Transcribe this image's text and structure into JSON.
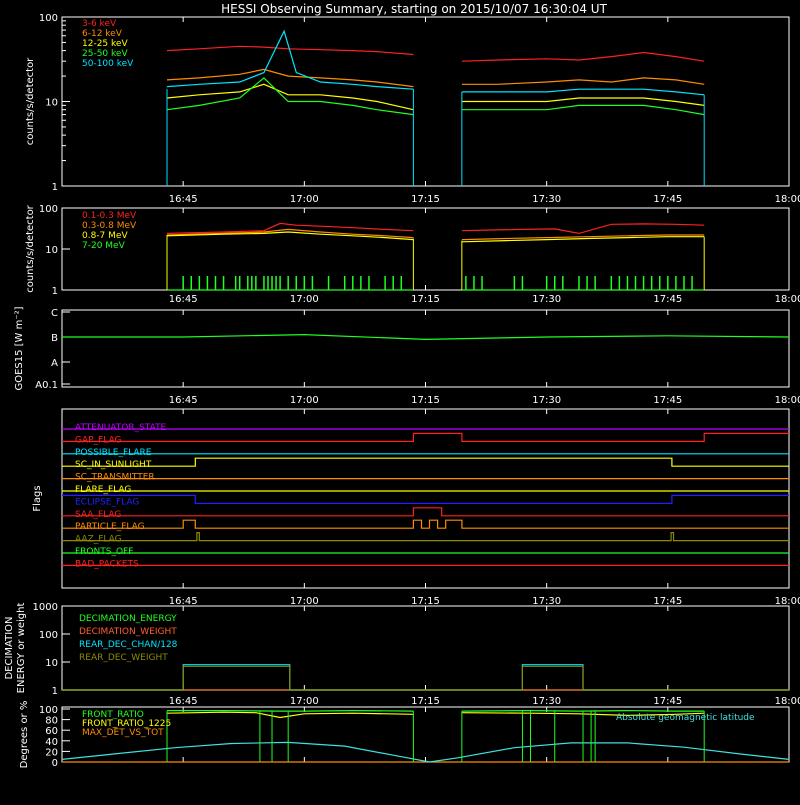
{
  "title": "HESSI Observing Summary, starting on 2015/10/07 16:30:04 UT",
  "time_ticks": [
    "16:45",
    "17:00",
    "17:15",
    "17:30",
    "17:45",
    "18:00"
  ],
  "chart_data": [
    {
      "id": "count_rates",
      "type": "line",
      "ylabel": "counts/s/detector",
      "yscale": "log",
      "ylim": [
        1,
        100
      ],
      "ytick_labels": [
        "1",
        "10",
        "100"
      ],
      "x_unit": "minutes after 16:30",
      "xlim": [
        0,
        90
      ],
      "series": [
        {
          "name": "3-6 keV",
          "color": "#ff2020",
          "segments": [
            {
              "x": [
                13,
                17,
                22,
                25,
                28,
                32,
                36,
                39,
                43.5
              ],
              "y": [
                40,
                42,
                45,
                44,
                42,
                41,
                40,
                39,
                36
              ]
            },
            {
              "x": [
                49.5,
                54,
                60,
                64,
                68,
                72,
                76,
                79.5
              ],
              "y": [
                30,
                31,
                32,
                31,
                34,
                38,
                34,
                30
              ]
            }
          ]
        },
        {
          "name": "6-12 keV",
          "color": "#ff8c00",
          "segments": [
            {
              "x": [
                13,
                17,
                22,
                25,
                28,
                32,
                36,
                39,
                43.5
              ],
              "y": [
                18,
                19,
                21,
                24,
                20,
                19,
                18,
                17,
                15
              ]
            },
            {
              "x": [
                49.5,
                54,
                60,
                64,
                68,
                72,
                76,
                79.5
              ],
              "y": [
                16,
                16,
                17,
                18,
                17,
                19,
                18,
                16
              ]
            }
          ]
        },
        {
          "name": "12-25 keV",
          "color": "#ffff00",
          "segments": [
            {
              "x": [
                13,
                17,
                22,
                25,
                28,
                32,
                36,
                39,
                43.5
              ],
              "y": [
                11,
                12,
                13,
                16,
                12,
                12,
                11,
                10,
                8
              ]
            },
            {
              "x": [
                49.5,
                54,
                60,
                64,
                68,
                72,
                76,
                79.5
              ],
              "y": [
                10,
                10,
                10,
                11,
                11,
                11,
                10,
                9
              ]
            }
          ]
        },
        {
          "name": "25-50 keV",
          "color": "#20ff20",
          "segments": [
            {
              "x": [
                13,
                17,
                22,
                25,
                28,
                32,
                36,
                39,
                43.5
              ],
              "y": [
                8,
                9,
                11,
                19,
                10,
                10,
                9,
                8,
                7
              ]
            },
            {
              "x": [
                49.5,
                54,
                60,
                64,
                68,
                72,
                76,
                79.5
              ],
              "y": [
                8,
                8,
                8,
                9,
                9,
                9,
                8,
                7
              ]
            }
          ]
        },
        {
          "name": "50-100 keV",
          "color": "#00e5ff",
          "segments": [
            {
              "x": [
                13,
                17,
                22,
                25,
                27.5,
                29,
                32,
                36,
                39,
                43.5
              ],
              "y": [
                15,
                16,
                17,
                22,
                68,
                22,
                17,
                16,
                15,
                14
              ]
            },
            {
              "x": [
                49.5,
                54,
                60,
                64,
                68,
                72,
                76,
                79.5
              ],
              "y": [
                13,
                13,
                13,
                14,
                14,
                14,
                13,
                12
              ]
            }
          ]
        }
      ]
    },
    {
      "id": "high_energy_rates",
      "type": "line",
      "ylabel": "counts/s/detector",
      "yscale": "log",
      "ylim": [
        1,
        100
      ],
      "ytick_labels": [
        "1",
        "10",
        "100"
      ],
      "x_unit": "minutes after 16:30",
      "xlim": [
        0,
        90
      ],
      "series": [
        {
          "name": "0.1-0.3 MeV",
          "color": "#ff2020",
          "segments": [
            {
              "x": [
                13,
                20,
                25,
                27,
                29,
                32,
                36,
                40,
                43.5
              ],
              "y": [
                24,
                26,
                28,
                42,
                38,
                36,
                33,
                30,
                28
              ]
            },
            {
              "x": [
                49.5,
                53,
                57,
                61,
                64,
                68,
                72,
                76,
                79.5
              ],
              "y": [
                28,
                29,
                30,
                31,
                24,
                40,
                41,
                40,
                38
              ]
            }
          ]
        },
        {
          "name": "0.3-0.8 MeV",
          "color": "#ff8c00",
          "segments": [
            {
              "x": [
                13,
                20,
                25,
                28,
                32,
                36,
                40,
                43.5
              ],
              "y": [
                22,
                24,
                26,
                30,
                26,
                23,
                21,
                19
              ]
            },
            {
              "x": [
                49.5,
                55,
                60,
                65,
                70,
                75,
                79.5
              ],
              "y": [
                17,
                18,
                19,
                20,
                21,
                22,
                22
              ]
            }
          ]
        },
        {
          "name": "0.8-7 MeV",
          "color": "#ffff00",
          "segments": [
            {
              "x": [
                13,
                20,
                25,
                28,
                32,
                36,
                40,
                43.5
              ],
              "y": [
                21,
                23,
                24,
                26,
                23,
                21,
                19,
                17
              ]
            },
            {
              "x": [
                49.5,
                55,
                60,
                65,
                70,
                75,
                79.5
              ],
              "y": [
                15,
                16,
                17,
                18,
                19,
                20,
                20
              ]
            }
          ]
        },
        {
          "name": "7-20 MeV",
          "color": "#20ff20",
          "segments": [
            {
              "x": [
                13,
                43.5
              ],
              "y": [
                1,
                1
              ]
            },
            {
              "x": [
                49.5,
                79.5
              ],
              "y": [
                1,
                1
              ]
            }
          ]
        }
      ]
    },
    {
      "id": "goes",
      "type": "line",
      "ylabel": "GOES15 [W m⁻²]",
      "ytick_labels": [
        "A0.1",
        "A",
        "B",
        "C"
      ],
      "series": [
        {
          "name": "GOES15",
          "color": "#20ff20",
          "x": [
            0,
            15,
            30,
            45,
            60,
            75,
            90
          ],
          "y": [
            -6.9,
            -6.9,
            -6.88,
            -6.92,
            -6.9,
            -6.89,
            -6.9
          ]
        }
      ]
    },
    {
      "id": "flags",
      "type": "line",
      "ylabel": "Flags",
      "series": [
        {
          "name": "ATTENUATOR_STATE",
          "color": "#c000ff",
          "x": [
            0,
            90
          ],
          "y": [
            0,
            0
          ]
        },
        {
          "name": "GAP_FLAG",
          "color": "#ff2020",
          "x": [
            0,
            43.5,
            43.5,
            49.5,
            49.5,
            79.5,
            79.5,
            90
          ],
          "y": [
            0,
            0,
            1,
            1,
            0,
            0,
            1,
            1
          ]
        },
        {
          "name": "POSSIBLE_FLARE",
          "color": "#00e5ff",
          "x": [
            0,
            90
          ],
          "y": [
            0,
            0
          ]
        },
        {
          "name": "SC_IN_SUNLIGHT",
          "color": "#ffff00",
          "x": [
            0,
            16.5,
            16.5,
            75.5,
            75.5,
            90
          ],
          "y": [
            0,
            0,
            1,
            1,
            0,
            0
          ]
        },
        {
          "name": "SC_TRANSMITTER",
          "color": "#ff8c00",
          "x": [
            0,
            90
          ],
          "y": [
            0,
            0
          ]
        },
        {
          "name": "FLARE_FLAG",
          "color": "#ffff00",
          "x": [
            0,
            90
          ],
          "y": [
            0,
            0
          ]
        },
        {
          "name": "ECLIPSE_FLAG",
          "color": "#2020ff",
          "x": [
            0,
            16.5,
            16.5,
            75.5,
            75.5,
            90
          ],
          "y": [
            1,
            1,
            0,
            0,
            1,
            1
          ]
        },
        {
          "name": "SAA_FLAG",
          "color": "#ff2020",
          "x": [
            0,
            43.5,
            43.5,
            47,
            47,
            90
          ],
          "y": [
            0,
            0,
            1,
            1,
            0,
            0
          ]
        },
        {
          "name": "PARTICLE_FLAG",
          "color": "#ff8c00",
          "x": [
            0,
            15,
            15,
            16.5,
            16.5,
            43.5,
            43.5,
            44.5,
            44.5,
            45.5,
            45.5,
            46.5,
            46.5,
            47.5,
            47.5,
            49.5,
            49.5,
            90
          ],
          "y": [
            0,
            0,
            1,
            1,
            0,
            0,
            1,
            1,
            0,
            0,
            1,
            1,
            0,
            0,
            1,
            1,
            0,
            0
          ]
        },
        {
          "name": "AAZ_FLAG",
          "color": "#8b8b00",
          "x": [
            0,
            16.7,
            16.7,
            17,
            17,
            75.4,
            75.4,
            75.7,
            75.7,
            90
          ],
          "y": [
            0,
            0,
            1,
            1,
            0,
            0,
            1,
            1,
            0,
            0
          ]
        },
        {
          "name": "FRONTS_OFF",
          "color": "#20ff20",
          "x": [
            0,
            90
          ],
          "y": [
            0,
            0
          ]
        },
        {
          "name": "BAD_PACKETS",
          "color": "#ff2020",
          "x": [
            0,
            90
          ],
          "y": [
            0,
            0
          ]
        }
      ]
    },
    {
      "id": "decimation",
      "type": "line",
      "ylabel": "DECIMATION ENERGY or weight",
      "yscale": "log",
      "ylim": [
        1,
        1000
      ],
      "ytick_labels": [
        "1",
        "10",
        "100",
        "1000"
      ],
      "series": [
        {
          "name": "DECIMATION_ENERGY",
          "color": "#20ff20",
          "x": [
            0,
            90
          ],
          "y": [
            1,
            1
          ]
        },
        {
          "name": "DECIMATION_WEIGHT",
          "color": "#ff6030",
          "x": [
            0,
            90
          ],
          "y": [
            1,
            1
          ]
        },
        {
          "name": "REAR_DEC_CHAN/128",
          "color": "#00e5ff",
          "x": [
            0,
            15,
            15,
            28.2,
            28.2,
            57,
            57,
            64.5,
            64.5,
            90
          ],
          "y": [
            1,
            1,
            8,
            8,
            1,
            1,
            8,
            8,
            1,
            1
          ]
        },
        {
          "name": "REAR_DEC_WEIGHT",
          "color": "#8b8b00",
          "x": [
            0,
            15,
            15,
            28.2,
            28.2,
            57,
            57,
            64.5,
            64.5,
            90
          ],
          "y": [
            1,
            1,
            7,
            7,
            1,
            1,
            7,
            7,
            1,
            1
          ]
        }
      ]
    },
    {
      "id": "ratios",
      "type": "line",
      "ylabel": "Degrees or %",
      "ylim": [
        0,
        100
      ],
      "ytick_labels": [
        "0",
        "20",
        "40",
        "60",
        "80",
        "100"
      ],
      "annotation": "Absolute geomagnetic latitude",
      "series": [
        {
          "name": "FRONT_RATIO",
          "color": "#20ff20",
          "segments": [
            {
              "x": [
                13,
                20,
                27,
                30,
                36,
                43.5
              ],
              "y": [
                97,
                97,
                96,
                96,
                97,
                96
              ]
            },
            {
              "x": [
                49.5,
                58,
                64,
                70,
                76,
                79.5
              ],
              "y": [
                96,
                97,
                96,
                97,
                96,
                96
              ]
            }
          ]
        },
        {
          "name": "FRONT_RATIO_1225",
          "color": "#ffff00",
          "segments": [
            {
              "x": [
                13,
                20,
                24,
                27,
                30,
                36,
                43.5
              ],
              "y": [
                92,
                94,
                93,
                84,
                91,
                92,
                90
              ]
            },
            {
              "x": [
                49.5,
                58,
                64,
                70,
                76,
                79.5
              ],
              "y": [
                93,
                92,
                91,
                88,
                90,
                92
              ]
            }
          ]
        },
        {
          "name": "MAX_DET_VS_TOT",
          "color": "#ff8c00",
          "x": [
            0,
            90
          ],
          "y": [
            0,
            0
          ]
        },
        {
          "name": "Absolute geomagnetic latitude",
          "color": "#40e0e0",
          "x": [
            0,
            7,
            14,
            21,
            28,
            35,
            42,
            45.5,
            49,
            56,
            63,
            70,
            77,
            84,
            90
          ],
          "y": [
            5,
            16,
            27,
            35,
            37,
            30,
            10,
            0,
            8,
            27,
            36,
            36,
            28,
            15,
            5
          ]
        }
      ]
    }
  ]
}
